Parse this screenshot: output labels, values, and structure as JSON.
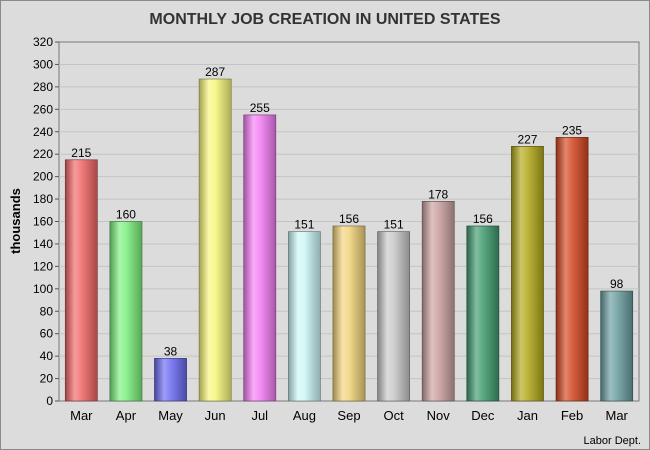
{
  "chart_data": {
    "type": "bar",
    "title": "MONTHLY JOB CREATION IN UNITED STATES",
    "xlabel": "",
    "ylabel": "thousands",
    "ylim": [
      0,
      320
    ],
    "ytick_step": 20,
    "grid": true,
    "legend": "none",
    "source": "Labor Dept.",
    "categories": [
      "Mar",
      "Apr",
      "May",
      "Jun",
      "Jul",
      "Aug",
      "Sep",
      "Oct",
      "Nov",
      "Dec",
      "Jan",
      "Feb",
      "Mar"
    ],
    "values": [
      215,
      160,
      38,
      287,
      255,
      151,
      156,
      151,
      178,
      156,
      227,
      235,
      98
    ],
    "colors": [
      "#f26666",
      "#7cf07c",
      "#6a6af2",
      "#f7f77a",
      "#f47cf4",
      "#ccf7f7",
      "#f2d37a",
      "#c8c8c8",
      "#caa0a0",
      "#3f9a6e",
      "#b2a81a",
      "#d2461e",
      "#6a9da0"
    ]
  }
}
